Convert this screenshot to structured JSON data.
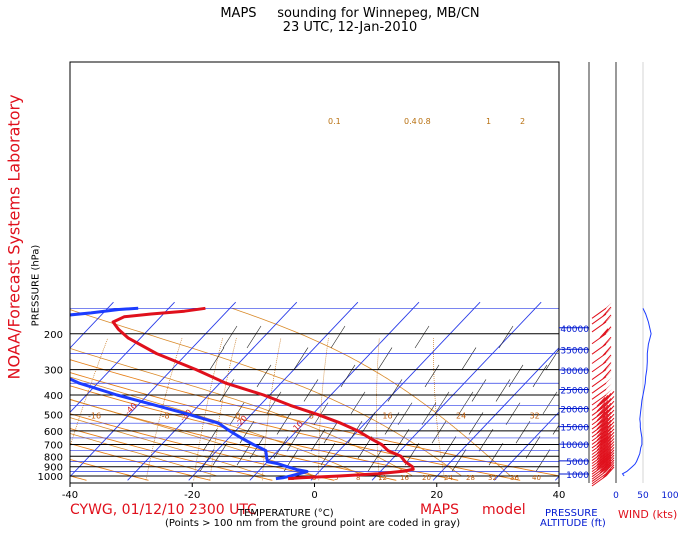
{
  "header": {
    "model": "MAPS",
    "title": "sounding for Winnepeg, MB/CN",
    "time": "23 UTC, 12-Jan-2010"
  },
  "side_label": "NOAA/Forecast Systems Laboratory",
  "footer": {
    "station": "CYWG, 01/12/10 2300 UTC",
    "model_name": "MAPS",
    "model_word": "model",
    "footnote": "(Points > 100 nm from the ground point are coded in gray)",
    "pressure_altitude_1": "PRESSURE",
    "pressure_altitude_2": "ALTITUDE (ft)",
    "wind_label": "WIND (kts)"
  },
  "chart_data": {
    "type": "skew-t",
    "xlabel": "TEMPERATURE (°C)",
    "ylabel": "PRESSURE (hPa)",
    "x_ticks": [
      -40,
      -20,
      0,
      20,
      40
    ],
    "x_tick_labels": [
      "-40",
      "-20",
      "0",
      "20",
      "40"
    ],
    "y_ticks": [
      1000,
      900,
      800,
      700,
      600,
      500,
      400,
      300,
      200
    ],
    "y_tick_labels": [
      "1000",
      "900",
      "800",
      "700",
      "600",
      "500",
      "400",
      "300",
      "200"
    ],
    "isobars_extra": [
      950,
      850,
      750,
      650,
      550,
      450,
      350,
      250,
      150
    ],
    "xlim": [
      -40,
      40
    ],
    "ylim": [
      1030,
      150
    ],
    "temperature_color": "#e0101c",
    "dewpoint_color": "#1c3cff",
    "temperature_profile": [
      {
        "p": 1030,
        "t": -4
      },
      {
        "p": 1020,
        "t": -2
      },
      {
        "p": 1000,
        "t": 4
      },
      {
        "p": 975,
        "t": 10
      },
      {
        "p": 960,
        "t": 12
      },
      {
        "p": 945,
        "t": 14
      },
      {
        "p": 925,
        "t": 15
      },
      {
        "p": 900,
        "t": 14.5
      },
      {
        "p": 850,
        "t": 12.5
      },
      {
        "p": 800,
        "t": 11
      },
      {
        "p": 750,
        "t": 8
      },
      {
        "p": 700,
        "t": 6
      },
      {
        "p": 650,
        "t": 3
      },
      {
        "p": 600,
        "t": 0
      },
      {
        "p": 550,
        "t": -4
      },
      {
        "p": 500,
        "t": -9
      },
      {
        "p": 450,
        "t": -15
      },
      {
        "p": 400,
        "t": -21
      },
      {
        "p": 350,
        "t": -29
      },
      {
        "p": 300,
        "t": -36
      },
      {
        "p": 250,
        "t": -45
      },
      {
        "p": 210,
        "t": -52
      },
      {
        "p": 190,
        "t": -55
      },
      {
        "p": 175,
        "t": -57
      },
      {
        "p": 165,
        "t": -56
      },
      {
        "p": 160,
        "t": -52
      },
      {
        "p": 155,
        "t": -47
      },
      {
        "p": 150,
        "t": -44
      }
    ],
    "dewpoint_profile": [
      {
        "p": 1030,
        "t": -6
      },
      {
        "p": 1020,
        "t": -5
      },
      {
        "p": 1000,
        "t": -4
      },
      {
        "p": 975,
        "t": -3
      },
      {
        "p": 950,
        "t": -2
      },
      {
        "p": 930,
        "t": -4
      },
      {
        "p": 900,
        "t": -6
      },
      {
        "p": 870,
        "t": -8
      },
      {
        "p": 850,
        "t": -10
      },
      {
        "p": 800,
        "t": -11
      },
      {
        "p": 750,
        "t": -12
      },
      {
        "p": 700,
        "t": -15
      },
      {
        "p": 650,
        "t": -18
      },
      {
        "p": 600,
        "t": -21
      },
      {
        "p": 550,
        "t": -24
      },
      {
        "p": 500,
        "t": -30
      },
      {
        "p": 450,
        "t": -37
      },
      {
        "p": 400,
        "t": -45
      },
      {
        "p": 350,
        "t": -53
      },
      {
        "p": 300,
        "t": -60
      },
      {
        "p": 250,
        "t": -67
      },
      {
        "p": 210,
        "t": -74
      },
      {
        "p": 190,
        "t": -78
      },
      {
        "p": 175,
        "t": -74
      },
      {
        "p": 165,
        "t": -68
      },
      {
        "p": 158,
        "t": -62
      },
      {
        "p": 152,
        "t": -58
      },
      {
        "p": 150,
        "t": -55
      }
    ],
    "isotherm_labels": [
      {
        "t": -120,
        "label": "-120"
      },
      {
        "t": -110,
        "label": "-110"
      },
      {
        "t": -100,
        "label": "-100"
      },
      {
        "t": -90,
        "label": "-90"
      },
      {
        "t": -80,
        "label": "-80"
      },
      {
        "t": -70,
        "label": "-70"
      },
      {
        "t": -60,
        "label": "-60"
      },
      {
        "t": -50,
        "label": "-50"
      },
      {
        "t": -40,
        "label": "-40"
      },
      {
        "t": -30,
        "label": "-30"
      },
      {
        "t": -20,
        "label": "-20"
      },
      {
        "t": -10,
        "label": "-10"
      }
    ],
    "dry_adiabat_labels": [
      {
        "th": -100,
        "label": "-100"
      },
      {
        "th": -90,
        "label": "-90"
      },
      {
        "th": -80,
        "label": "-80"
      },
      {
        "th": -70,
        "label": "-70"
      },
      {
        "th": -60,
        "label": "-60"
      },
      {
        "th": -50,
        "label": "-50"
      },
      {
        "th": -40,
        "label": "-40"
      },
      {
        "th": -30,
        "label": "-30"
      },
      {
        "th": -20,
        "label": "-20"
      },
      {
        "th": -10,
        "label": "-10"
      },
      {
        "th": 0,
        "label": "0"
      },
      {
        "th": 10,
        "label": "10"
      },
      {
        "th": 20,
        "label": "20"
      },
      {
        "th": 30,
        "label": "30"
      },
      {
        "th": 40,
        "label": "40"
      }
    ],
    "moist_adiabat_labels": [
      {
        "t": -16,
        "label": "-16"
      },
      {
        "t": -8,
        "label": "-8"
      },
      {
        "t": 0,
        "label": "0"
      },
      {
        "t": 8,
        "label": "8"
      },
      {
        "t": 16,
        "label": "16"
      },
      {
        "t": 24,
        "label": "24"
      },
      {
        "t": 32,
        "label": "32"
      }
    ],
    "mixing_ratio_labels": [
      {
        "w": 0.1,
        "label": "0.1"
      },
      {
        "w": 0.4,
        "label": "0.4"
      },
      {
        "w": 0.8,
        "label": "0.8"
      },
      {
        "w": 1,
        "label": "1"
      },
      {
        "w": 2,
        "label": "2"
      }
    ],
    "bottom_line_labels": [
      "1",
      "3",
      "5",
      "8",
      "12",
      "16",
      "20",
      "24",
      "28",
      "32",
      "36",
      "40"
    ],
    "altitude_ticks_ft": [
      1000,
      5000,
      10000,
      15000,
      20000,
      25000,
      30000,
      35000,
      40000
    ],
    "altitude_tick_labels": [
      "1000",
      "5000",
      "10000",
      "15000",
      "20000",
      "25000",
      "30000",
      "35000",
      "40000"
    ],
    "wind_speed_ticks": [
      0,
      50,
      100
    ],
    "wind_speed_tick_labels": [
      "0",
      "50",
      "100"
    ],
    "wind_profile": [
      {
        "p": 1000,
        "spd": 15
      },
      {
        "p": 975,
        "spd": 12
      },
      {
        "p": 950,
        "spd": 20
      },
      {
        "p": 925,
        "spd": 25
      },
      {
        "p": 900,
        "spd": 30
      },
      {
        "p": 875,
        "spd": 35
      },
      {
        "p": 850,
        "spd": 38
      },
      {
        "p": 825,
        "spd": 40
      },
      {
        "p": 800,
        "spd": 42
      },
      {
        "p": 775,
        "spd": 44
      },
      {
        "p": 750,
        "spd": 45
      },
      {
        "p": 725,
        "spd": 46
      },
      {
        "p": 700,
        "spd": 48
      },
      {
        "p": 675,
        "spd": 48
      },
      {
        "p": 650,
        "spd": 48
      },
      {
        "p": 625,
        "spd": 47
      },
      {
        "p": 600,
        "spd": 46
      },
      {
        "p": 575,
        "spd": 45
      },
      {
        "p": 550,
        "spd": 45
      },
      {
        "p": 525,
        "spd": 44
      },
      {
        "p": 500,
        "spd": 45
      },
      {
        "p": 475,
        "spd": 46
      },
      {
        "p": 450,
        "spd": 47
      },
      {
        "p": 425,
        "spd": 48
      },
      {
        "p": 400,
        "spd": 50
      },
      {
        "p": 375,
        "spd": 52
      },
      {
        "p": 350,
        "spd": 54
      },
      {
        "p": 325,
        "spd": 55
      },
      {
        "p": 300,
        "spd": 57
      },
      {
        "p": 275,
        "spd": 58
      },
      {
        "p": 250,
        "spd": 58
      },
      {
        "p": 225,
        "spd": 60
      },
      {
        "p": 200,
        "spd": 65
      },
      {
        "p": 175,
        "spd": 60
      },
      {
        "p": 160,
        "spd": 55
      },
      {
        "p": 150,
        "spd": 50
      }
    ],
    "grid": true
  }
}
